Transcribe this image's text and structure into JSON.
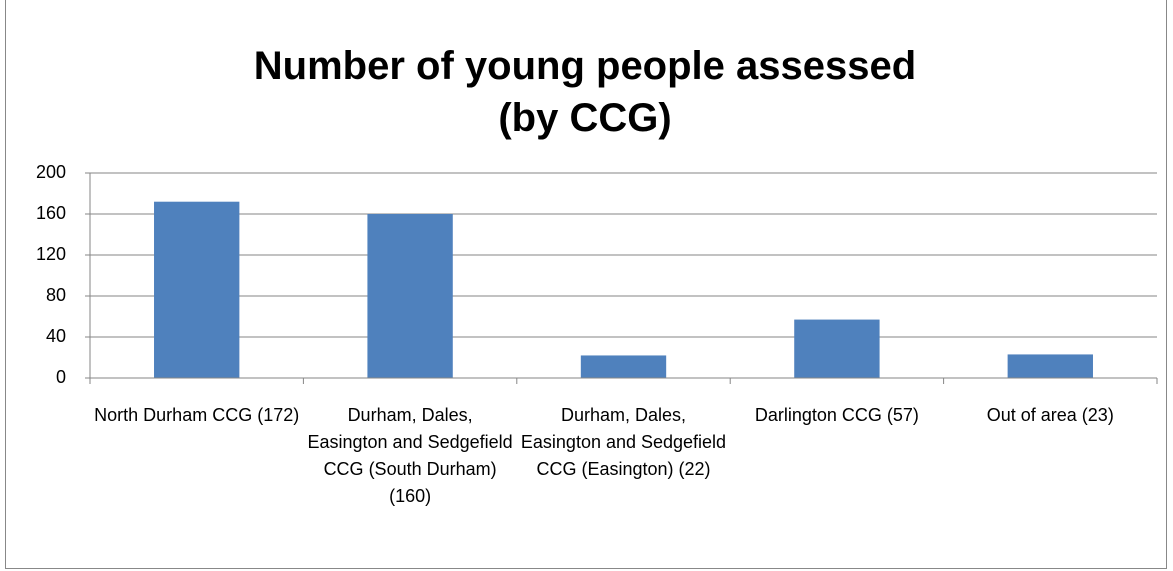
{
  "chart_data": {
    "type": "bar",
    "title": "Number of young people assessed (by CCG)",
    "categories": [
      "North Durham CCG (172)",
      "Durham, Dales, Easington and Sedgefield CCG (South Durham) (160)",
      "Durham, Dales, Easington and Sedgefield CCG (Easington) (22)",
      "Darlington CCG (57)",
      "Out of area (23)"
    ],
    "values": [
      172,
      160,
      22,
      57,
      23
    ],
    "color": "#4f81bd",
    "ylim": [
      0,
      200
    ],
    "yticks": [
      0,
      40,
      80,
      120,
      160,
      200
    ],
    "grid": true
  }
}
